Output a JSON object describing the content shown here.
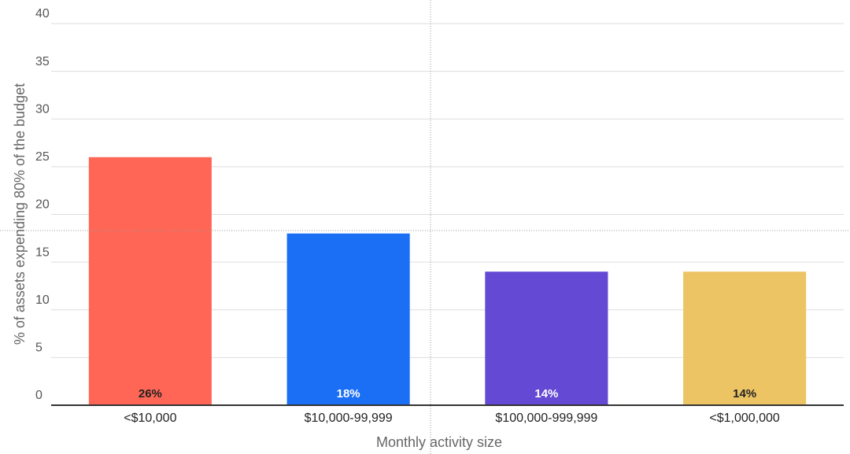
{
  "chart_data": {
    "type": "bar",
    "x_label": "Monthly activity size",
    "y_label": "% of assets expending 80% of the budget",
    "categories": [
      "<$10,000",
      "$10,000-99,999",
      "$100,000-999,999",
      "<$1,000,000"
    ],
    "values": [
      26,
      18,
      14,
      14
    ],
    "value_labels": [
      "26%",
      "18%",
      "14%",
      "14%"
    ],
    "colors": [
      "#ff6655",
      "#1a6ff5",
      "#6349d4",
      "#ecc464"
    ],
    "ylim": [
      0,
      40
    ],
    "yticks": [
      0,
      5,
      10,
      15,
      20,
      25,
      30,
      35,
      40
    ],
    "grid": true
  }
}
